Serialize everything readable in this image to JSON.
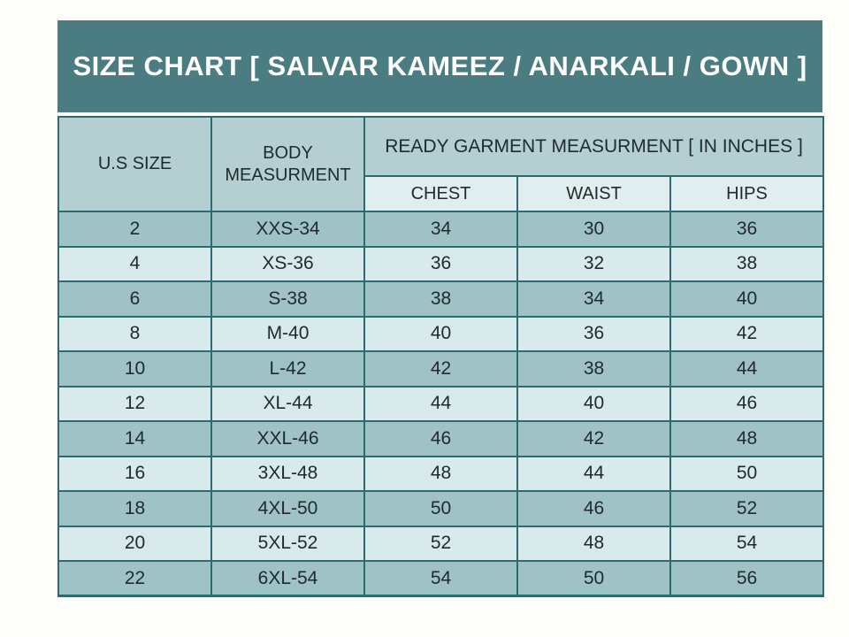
{
  "title_bar": {
    "text": "SIZE CHART [ SALVAR KAMEEZ / ANARKALI / GOWN ]"
  },
  "table": {
    "col1_header": "U.S SIZE",
    "col2_header": "BODY MEASURMENT",
    "group_header": "READY GARMENT MEASURMENT [ IN INCHES ]",
    "sub_headers": [
      "CHEST",
      "WAIST",
      "HIPS"
    ],
    "rows": [
      [
        "2",
        "XXS-34",
        "34",
        "30",
        "36"
      ],
      [
        "4",
        "XS-36",
        "36",
        "32",
        "38"
      ],
      [
        "6",
        "S-38",
        "38",
        "34",
        "40"
      ],
      [
        "8",
        "M-40",
        "40",
        "36",
        "42"
      ],
      [
        "10",
        "L-42",
        "42",
        "38",
        "44"
      ],
      [
        "12",
        "XL-44",
        "44",
        "40",
        "46"
      ],
      [
        "14",
        "XXL-46",
        "46",
        "42",
        "48"
      ],
      [
        "16",
        "3XL-48",
        "48",
        "44",
        "50"
      ],
      [
        "18",
        "4XL-50",
        "50",
        "46",
        "52"
      ],
      [
        "20",
        "5XL-52",
        "52",
        "48",
        "54"
      ],
      [
        "22",
        "6XL-54",
        "54",
        "50",
        "56"
      ]
    ]
  },
  "colors": {
    "title_background": "#4a7c82",
    "title_text": "#ffffff",
    "header_cell_background": "#b4ced2",
    "sub_header_background": "#e0eef0",
    "row_dark_background": "#9fc2c6",
    "row_light_background": "#d9eaec",
    "border": "#2e6b71",
    "cell_text": "#1e2a2b",
    "page_background": "#fdfdfa"
  },
  "chart_data": {
    "type": "table",
    "title": "SIZE CHART [ SALVAR KAMEEZ / ANARKALI / GOWN ]",
    "column_group": {
      "label": "READY GARMENT MEASURMENT [ IN INCHES ]",
      "spans": [
        "CHEST",
        "WAIST",
        "HIPS"
      ]
    },
    "columns": [
      "U.S SIZE",
      "BODY MEASURMENT",
      "CHEST",
      "WAIST",
      "HIPS"
    ],
    "rows": [
      [
        "2",
        "XXS-34",
        "34",
        "30",
        "36"
      ],
      [
        "4",
        "XS-36",
        "36",
        "32",
        "38"
      ],
      [
        "6",
        "S-38",
        "38",
        "34",
        "40"
      ],
      [
        "8",
        "M-40",
        "40",
        "36",
        "42"
      ],
      [
        "10",
        "L-42",
        "42",
        "38",
        "44"
      ],
      [
        "12",
        "XL-44",
        "44",
        "40",
        "46"
      ],
      [
        "14",
        "XXL-46",
        "46",
        "42",
        "48"
      ],
      [
        "16",
        "3XL-48",
        "48",
        "44",
        "50"
      ],
      [
        "18",
        "4XL-50",
        "50",
        "46",
        "52"
      ],
      [
        "20",
        "5XL-52",
        "52",
        "48",
        "54"
      ],
      [
        "22",
        "6XL-54",
        "54",
        "50",
        "56"
      ]
    ]
  }
}
